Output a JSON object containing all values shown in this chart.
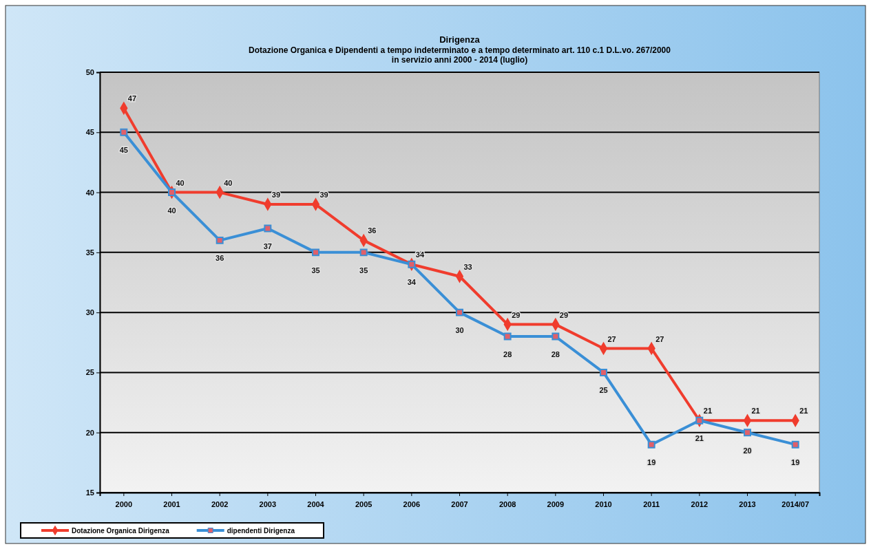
{
  "chart_data": {
    "type": "line",
    "title": "Dirigenza",
    "subtitle": "Dotazione Organica e Dipendenti a tempo indeterminato e a tempo determinato art. 110 c.1 D.L.vo. 267/2000\nin servizio anni 2000 - 2014 (luglio)",
    "categories": [
      "2000",
      "2001",
      "2002",
      "2003",
      "2004",
      "2005",
      "2006",
      "2007",
      "2008",
      "2009",
      "2010",
      "2011",
      "2012",
      "2013",
      "2014/07"
    ],
    "series": [
      {
        "name": "Dotazione Organica Dirigenza",
        "color": "#f03c2d",
        "marker": "diamond",
        "values": [
          47,
          40,
          40,
          39,
          39,
          36,
          34,
          33,
          29,
          29,
          27,
          27,
          21,
          21,
          21
        ]
      },
      {
        "name": "dipendenti Dirigenza",
        "color": "#3a8fd6",
        "marker": "square",
        "values": [
          45,
          40,
          36,
          37,
          35,
          35,
          34,
          30,
          28,
          28,
          25,
          19,
          21,
          20,
          19
        ]
      }
    ],
    "ylim": [
      15,
      50
    ],
    "yticks": [
      15,
      20,
      25,
      30,
      35,
      40,
      45,
      50
    ],
    "grid": "y",
    "legend": "bottom left",
    "data_labels": true
  }
}
